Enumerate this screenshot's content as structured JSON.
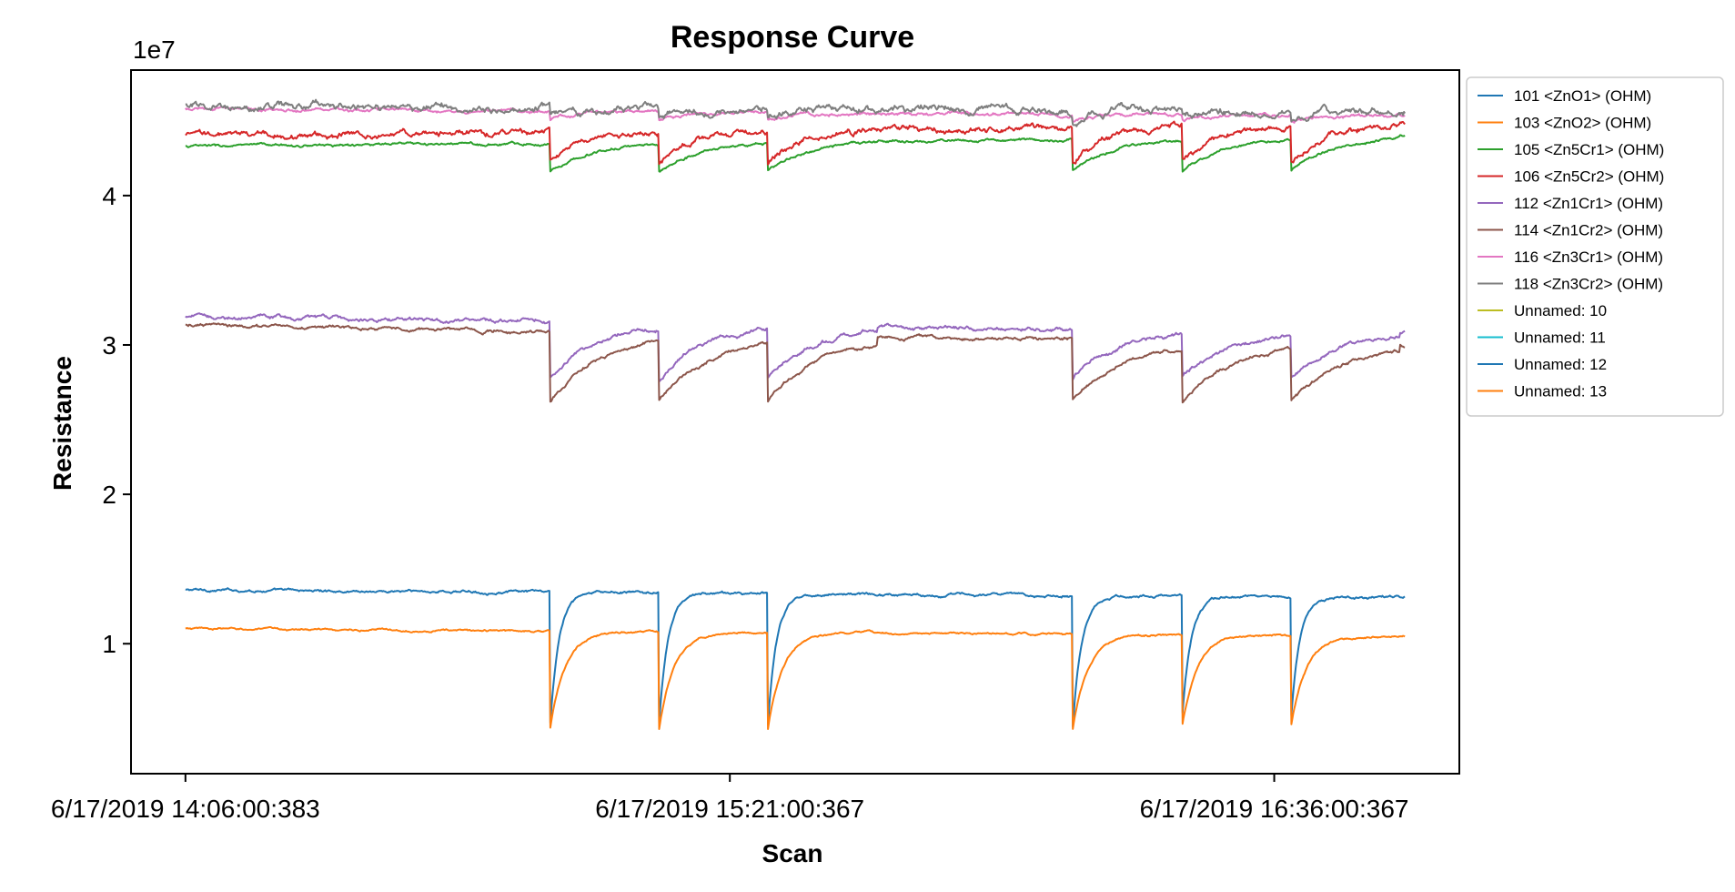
{
  "chart_data": {
    "type": "line",
    "title": "Response Curve",
    "xlabel": "Scan",
    "ylabel": "Resistance",
    "y_multiplier_label": "1e7",
    "xlim": [
      -0.1,
      2.34
    ],
    "ylim": [
      0.13,
      4.84
    ],
    "y_ticks": [
      1,
      2,
      3,
      4
    ],
    "y_tick_labels": [
      "1",
      "2",
      "3",
      "4"
    ],
    "x_ticks": [
      0,
      1,
      2
    ],
    "x_tick_labels": [
      "6/17/2019 14:06:00:383",
      "6/17/2019 15:21:00:367",
      "6/17/2019 16:36:00:367"
    ],
    "x_range": [
      0,
      2.24
    ],
    "event_times": [
      0.67,
      0.87,
      1.07,
      1.63,
      1.83,
      2.03
    ],
    "grid": false,
    "legend_position": "outside-right",
    "series": [
      {
        "name": "101 <ZnO1> (OHM)",
        "color": "#1f77b4",
        "shape": "exposure",
        "base": [
          1.36,
          1.31
        ],
        "dip": 0.45,
        "tau": 0.016,
        "noise": 0.008
      },
      {
        "name": "103 <ZnO2> (OHM)",
        "color": "#ff7f0e",
        "shape": "exposure",
        "base": [
          1.1,
          1.05
        ],
        "dip": 0.43,
        "tau": 0.028,
        "noise": 0.006
      },
      {
        "name": "105 <Zn5Cr1> (OHM)",
        "color": "#2ca02c",
        "shape": "drop",
        "base": [
          4.33,
          4.39
        ],
        "dip": 4.16,
        "tau": 0.07,
        "noise": 0.008
      },
      {
        "name": "106 <Zn5Cr2> (OHM)",
        "color": "#d62728",
        "shape": "drop",
        "base": [
          4.4,
          4.48
        ],
        "dip": 4.22,
        "tau": 0.06,
        "noise": 0.018
      },
      {
        "name": "112 <Zn1Cr1> (OHM)",
        "color": "#9467bd",
        "shape": "drop",
        "base": [
          3.19,
          3.08
        ],
        "dip": 2.78,
        "tau": 0.085,
        "noise": 0.012
      },
      {
        "name": "114 <Zn1Cr2> (OHM)",
        "color": "#8c564b",
        "shape": "drop",
        "base": [
          3.13,
          3.0
        ],
        "dip": 2.62,
        "tau": 0.095,
        "noise": 0.01
      },
      {
        "name": "116 <Zn3Cr1> (OHM)",
        "color": "#e377c2",
        "shape": "flat",
        "base": [
          4.58,
          4.53
        ],
        "dip": 4.5,
        "tau": 0.04,
        "noise": 0.01
      },
      {
        "name": "118 <Zn3Cr2> (OHM)",
        "color": "#7f7f7f",
        "shape": "flat",
        "base": [
          4.6,
          4.56
        ],
        "dip": 4.52,
        "tau": 0.04,
        "noise": 0.022
      },
      {
        "name": "Unnamed: 10",
        "color": "#bcbd22",
        "shape": "none"
      },
      {
        "name": "Unnamed: 11",
        "color": "#17becf",
        "shape": "none"
      },
      {
        "name": "Unnamed: 12",
        "color": "#1f77b4",
        "shape": "none"
      },
      {
        "name": "Unnamed: 13",
        "color": "#ff7f0e",
        "shape": "none"
      }
    ]
  }
}
